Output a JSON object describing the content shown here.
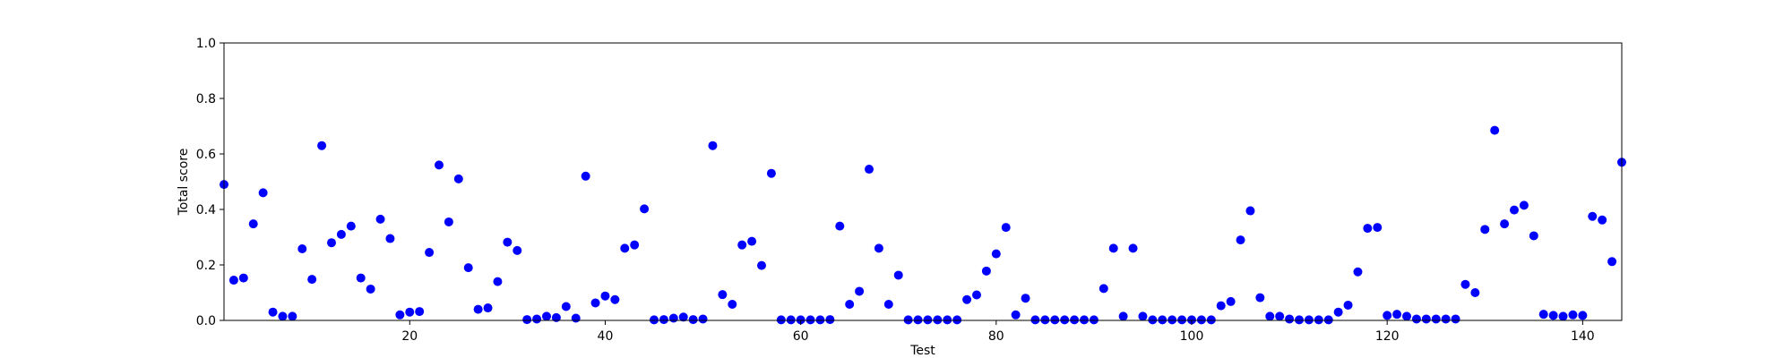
{
  "chart_data": {
    "type": "scatter",
    "xlabel": "Test",
    "ylabel": "Total score",
    "xlim": [
      1,
      144
    ],
    "ylim": [
      0.0,
      1.0
    ],
    "xticks": [
      20,
      40,
      60,
      80,
      100,
      120,
      140
    ],
    "xtick_labels": [
      "20",
      "40",
      "60",
      "80",
      "100",
      "120",
      "140"
    ],
    "yticks": [
      0.0,
      0.2,
      0.4,
      0.6,
      0.8,
      1.0
    ],
    "ytick_labels": [
      "0.0",
      "0.2",
      "0.4",
      "0.6",
      "0.8",
      "1.0"
    ],
    "grid": false,
    "marker_color": "#0000ff",
    "x": [
      1,
      2,
      3,
      4,
      5,
      6,
      7,
      8,
      9,
      10,
      11,
      12,
      13,
      14,
      15,
      16,
      17,
      18,
      19,
      20,
      21,
      22,
      23,
      24,
      25,
      26,
      27,
      28,
      29,
      30,
      31,
      32,
      33,
      34,
      35,
      36,
      37,
      38,
      39,
      40,
      41,
      42,
      43,
      44,
      45,
      46,
      47,
      48,
      49,
      50,
      51,
      52,
      53,
      54,
      55,
      56,
      57,
      58,
      59,
      60,
      61,
      62,
      63,
      64,
      65,
      66,
      67,
      68,
      69,
      70,
      71,
      72,
      73,
      74,
      75,
      76,
      77,
      78,
      79,
      80,
      81,
      82,
      83,
      84,
      85,
      86,
      87,
      88,
      89,
      90,
      91,
      92,
      93,
      94,
      95,
      96,
      97,
      98,
      99,
      100,
      101,
      102,
      103,
      104,
      105,
      106,
      107,
      108,
      109,
      110,
      111,
      112,
      113,
      114,
      115,
      116,
      117,
      118,
      119,
      120,
      121,
      122,
      123,
      124,
      125,
      126,
      127,
      128,
      129,
      130,
      131,
      132,
      133,
      134,
      135,
      136,
      137,
      138,
      139,
      140,
      141,
      142,
      143,
      144
    ],
    "y": [
      0.49,
      0.145,
      0.153,
      0.348,
      0.46,
      0.03,
      0.015,
      0.015,
      0.258,
      0.148,
      0.63,
      0.28,
      0.31,
      0.34,
      0.153,
      0.113,
      0.365,
      0.295,
      0.02,
      0.03,
      0.032,
      0.245,
      0.56,
      0.355,
      0.51,
      0.19,
      0.04,
      0.045,
      0.14,
      0.282,
      0.252,
      0.003,
      0.005,
      0.015,
      0.01,
      0.05,
      0.008,
      0.52,
      0.063,
      0.088,
      0.075,
      0.26,
      0.272,
      0.402,
      0.002,
      0.003,
      0.008,
      0.012,
      0.003,
      0.005,
      0.63,
      0.093,
      0.058,
      0.272,
      0.285,
      0.198,
      0.53,
      0.002,
      0.002,
      0.002,
      0.002,
      0.002,
      0.003,
      0.34,
      0.058,
      0.105,
      0.545,
      0.26,
      0.058,
      0.163,
      0.002,
      0.002,
      0.002,
      0.002,
      0.002,
      0.002,
      0.075,
      0.092,
      0.178,
      0.24,
      0.335,
      0.02,
      0.08,
      0.002,
      0.002,
      0.002,
      0.002,
      0.002,
      0.002,
      0.002,
      0.115,
      0.26,
      0.015,
      0.26,
      0.015,
      0.002,
      0.002,
      0.002,
      0.002,
      0.002,
      0.002,
      0.002,
      0.053,
      0.068,
      0.29,
      0.395,
      0.082,
      0.015,
      0.015,
      0.005,
      0.002,
      0.002,
      0.002,
      0.002,
      0.03,
      0.055,
      0.175,
      0.332,
      0.335,
      0.018,
      0.022,
      0.015,
      0.005,
      0.005,
      0.005,
      0.005,
      0.005,
      0.13,
      0.1,
      0.328,
      0.685,
      0.348,
      0.398,
      0.415,
      0.305,
      0.022,
      0.018,
      0.015,
      0.02,
      0.018,
      0.375,
      0.362,
      0.212,
      0.57
    ]
  }
}
